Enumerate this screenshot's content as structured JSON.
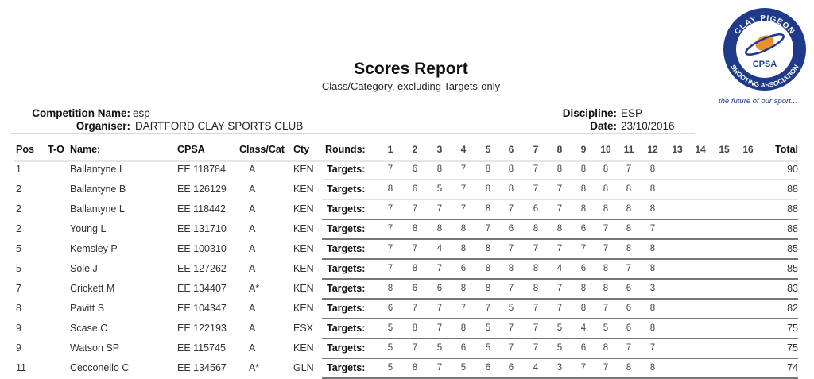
{
  "report": {
    "title": "Scores Report",
    "subtitle": "Class/Category, excluding Targets-only"
  },
  "info": {
    "competition_label": "Competition Name:",
    "competition_value": "esp",
    "organiser_label": "Organiser:",
    "organiser_value": "DARTFORD CLAY SPORTS CLUB",
    "discipline_label": "Discipline:",
    "discipline_value": "ESP",
    "date_label": "Date:",
    "date_value": "23/10/2016"
  },
  "logo": {
    "text_top": "CLAY PIGEON",
    "text_bottom": "SHOOTING ASSOCIATION",
    "abbr": "CPSA",
    "tagline": "the future of our sport...",
    "colors": {
      "ring": "#1f3a8a",
      "orange": "#e8912b"
    }
  },
  "table": {
    "headers": {
      "pos": "Pos",
      "to": "T-O",
      "name": "Name:",
      "cpsa": "CPSA",
      "class": "Class/Cat",
      "cty": "Cty",
      "rounds": "Rounds:",
      "total": "Total"
    },
    "round_numbers": [
      "1",
      "2",
      "3",
      "4",
      "5",
      "6",
      "7",
      "8",
      "9",
      "10",
      "11",
      "12",
      "13",
      "14",
      "15",
      "16"
    ],
    "row_label": "Targets:",
    "rows": [
      {
        "pos": "1",
        "name": "Ballantyne I",
        "cpsa": "EE 118784",
        "class": "A",
        "cty": "KEN",
        "scores": [
          "7",
          "6",
          "8",
          "7",
          "8",
          "8",
          "7",
          "8",
          "8",
          "8",
          "7",
          "8"
        ],
        "total": "90"
      },
      {
        "pos": "2",
        "name": "Ballantyne B",
        "cpsa": "EE 126129",
        "class": "A",
        "cty": "KEN",
        "scores": [
          "8",
          "6",
          "5",
          "7",
          "8",
          "8",
          "7",
          "7",
          "8",
          "8",
          "8",
          "8"
        ],
        "total": "88"
      },
      {
        "pos": "2",
        "name": "Ballantyne L",
        "cpsa": "EE 118442",
        "class": "A",
        "cty": "KEN",
        "scores": [
          "7",
          "7",
          "7",
          "7",
          "8",
          "7",
          "6",
          "7",
          "8",
          "8",
          "8",
          "8"
        ],
        "total": "88"
      },
      {
        "pos": "2",
        "name": "Young L",
        "cpsa": "EE 131710",
        "class": "A",
        "cty": "KEN",
        "scores": [
          "7",
          "8",
          "8",
          "8",
          "7",
          "6",
          "8",
          "8",
          "6",
          "7",
          "8",
          "7"
        ],
        "total": "88"
      },
      {
        "pos": "5",
        "name": "Kemsley P",
        "cpsa": "EE 100310",
        "class": "A",
        "cty": "KEN",
        "scores": [
          "7",
          "7",
          "4",
          "8",
          "8",
          "7",
          "7",
          "7",
          "7",
          "7",
          "8",
          "8"
        ],
        "total": "85"
      },
      {
        "pos": "5",
        "name": "Sole J",
        "cpsa": "EE 127262",
        "class": "A",
        "cty": "KEN",
        "scores": [
          "7",
          "8",
          "7",
          "6",
          "8",
          "8",
          "8",
          "4",
          "6",
          "8",
          "7",
          "8"
        ],
        "total": "85"
      },
      {
        "pos": "7",
        "name": "Crickett M",
        "cpsa": "EE 134407",
        "class": "A*",
        "cty": "KEN",
        "scores": [
          "8",
          "6",
          "6",
          "8",
          "8",
          "7",
          "8",
          "7",
          "8",
          "8",
          "6",
          "3"
        ],
        "total": "83"
      },
      {
        "pos": "8",
        "name": "Pavitt S",
        "cpsa": "EE 104347",
        "class": "A",
        "cty": "KEN",
        "scores": [
          "6",
          "7",
          "7",
          "7",
          "7",
          "5",
          "7",
          "7",
          "8",
          "7",
          "6",
          "8"
        ],
        "total": "82"
      },
      {
        "pos": "9",
        "name": "Scase C",
        "cpsa": "EE 122193",
        "class": "A",
        "cty": "ESX",
        "scores": [
          "5",
          "8",
          "7",
          "8",
          "5",
          "7",
          "7",
          "5",
          "4",
          "5",
          "6",
          "8"
        ],
        "total": "75"
      },
      {
        "pos": "9",
        "name": "Watson SP",
        "cpsa": "EE 115745",
        "class": "A",
        "cty": "KEN",
        "scores": [
          "5",
          "7",
          "5",
          "6",
          "5",
          "7",
          "7",
          "5",
          "6",
          "8",
          "7",
          "7"
        ],
        "total": "75"
      },
      {
        "pos": "11",
        "name": "Cecconello C",
        "cpsa": "EE 134567",
        "class": "A*",
        "cty": "GLN",
        "scores": [
          "5",
          "8",
          "7",
          "5",
          "6",
          "6",
          "4",
          "3",
          "7",
          "7",
          "8",
          "8"
        ],
        "total": "74"
      }
    ]
  }
}
